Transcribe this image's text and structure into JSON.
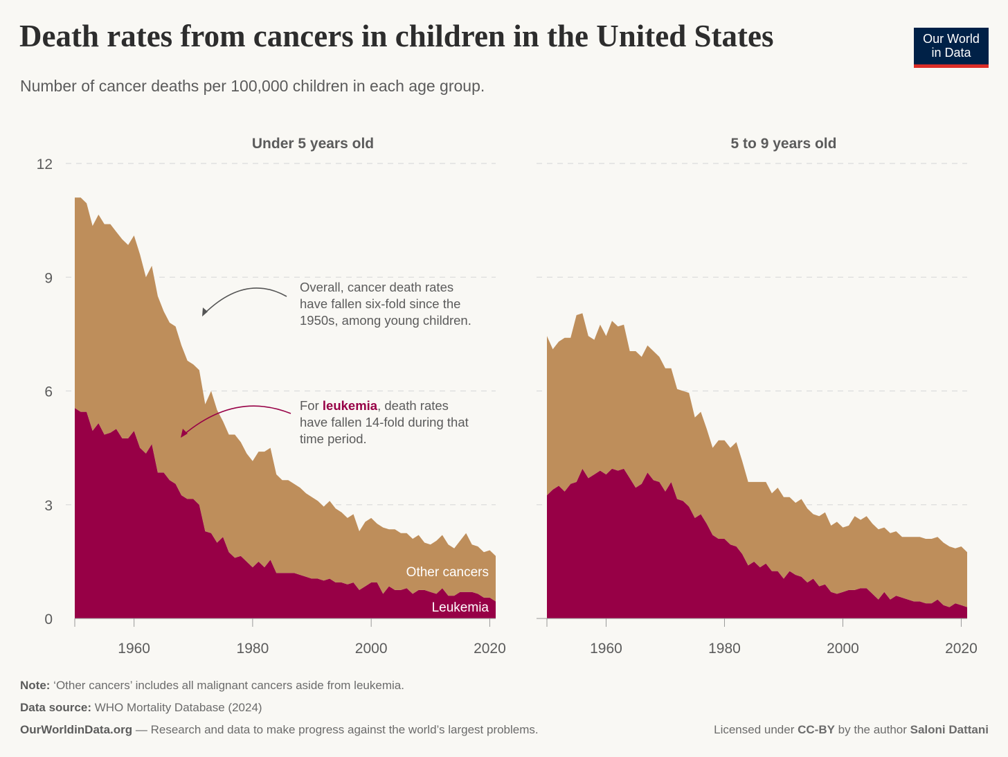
{
  "header": {
    "title": "Death rates from cancers in children in the United States",
    "subtitle": "Number of cancer deaths per 100,000 children in each age group.",
    "logo_line1": "Our World",
    "logo_line2": "in Data"
  },
  "colors": {
    "other_cancers": "#be8e5b",
    "leukemia": "#970046",
    "logo_bg": "#002147",
    "logo_accent": "#dc2d27"
  },
  "annotations": {
    "overall": [
      "Overall, cancer death rates",
      "have fallen six-fold since the",
      "1950s, among young children."
    ],
    "leukemia_prefix": "For ",
    "leukemia_word": "leukemia",
    "leukemia_rest": ", death rates",
    "leukemia_lines": [
      "have fallen 14-fold during that",
      "time period."
    ]
  },
  "footer": {
    "note_label": "Note:",
    "note": " ‘Other cancers’ includes all malignant cancers aside from leukemia.",
    "source_label": "Data source:",
    "source": " WHO Mortality Database (2024)",
    "site": "OurWorldinData.org",
    "tagline": " — Research and data to make progress against the world’s largest problems.",
    "license_prefix": "Licensed under ",
    "license": "CC-BY",
    "license_mid": " by the author ",
    "author": "Saloni Dattani"
  },
  "chart_data": [
    {
      "type": "area",
      "stacked": true,
      "title": "Under 5 years old",
      "x_start": 1950,
      "x_end": 2021,
      "xticks": [
        1960,
        1980,
        2000,
        2020
      ],
      "yticks": [
        0,
        3,
        6,
        9,
        12
      ],
      "ylim": [
        0,
        12
      ],
      "grid": "horizontal dashed",
      "series": [
        {
          "name": "Leukemia",
          "values": [
            5.55,
            5.45,
            5.45,
            4.95,
            5.15,
            4.85,
            4.9,
            5.0,
            4.75,
            4.75,
            4.95,
            4.5,
            4.35,
            4.6,
            3.85,
            3.85,
            3.65,
            3.55,
            3.25,
            3.15,
            3.15,
            3.0,
            2.3,
            2.25,
            2.0,
            2.15,
            1.75,
            1.6,
            1.65,
            1.5,
            1.35,
            1.5,
            1.35,
            1.55,
            1.2,
            1.2,
            1.2,
            1.2,
            1.15,
            1.1,
            1.05,
            1.05,
            1.0,
            1.05,
            0.95,
            0.95,
            0.9,
            0.95,
            0.75,
            0.85,
            0.95,
            0.95,
            0.65,
            0.85,
            0.75,
            0.75,
            0.8,
            0.65,
            0.75,
            0.75,
            0.7,
            0.65,
            0.8,
            0.6,
            0.6,
            0.7,
            0.7,
            0.7,
            0.65,
            0.55,
            0.55,
            0.45
          ]
        },
        {
          "name": "Other cancers",
          "values": [
            5.55,
            5.65,
            5.5,
            5.4,
            5.5,
            5.55,
            5.5,
            5.2,
            5.25,
            5.1,
            5.15,
            5.1,
            4.65,
            4.7,
            4.65,
            4.25,
            4.15,
            4.15,
            3.95,
            3.65,
            3.55,
            3.55,
            3.35,
            3.75,
            3.5,
            3.05,
            3.1,
            3.25,
            3.0,
            2.85,
            2.8,
            2.9,
            3.05,
            2.95,
            2.6,
            2.45,
            2.45,
            2.35,
            2.3,
            2.2,
            2.15,
            2.05,
            1.95,
            2.05,
            1.95,
            1.85,
            1.75,
            1.8,
            1.55,
            1.7,
            1.7,
            1.55,
            1.75,
            1.5,
            1.6,
            1.5,
            1.45,
            1.45,
            1.45,
            1.25,
            1.25,
            1.4,
            1.4,
            1.35,
            1.25,
            1.35,
            1.55,
            1.25,
            1.25,
            1.2,
            1.25,
            1.2
          ]
        }
      ]
    },
    {
      "type": "area",
      "stacked": true,
      "title": "5 to 9 years old",
      "x_start": 1950,
      "x_end": 2021,
      "xticks": [
        1960,
        1980,
        2000,
        2020
      ],
      "ylim": [
        0,
        12
      ],
      "grid": "horizontal dashed",
      "series": [
        {
          "name": "Leukemia",
          "values": [
            3.25,
            3.4,
            3.5,
            3.35,
            3.55,
            3.6,
            3.95,
            3.7,
            3.8,
            3.9,
            3.8,
            3.95,
            3.9,
            3.95,
            3.7,
            3.45,
            3.55,
            3.85,
            3.65,
            3.6,
            3.35,
            3.6,
            3.15,
            3.1,
            2.95,
            2.65,
            2.75,
            2.5,
            2.2,
            2.1,
            2.1,
            1.95,
            1.9,
            1.7,
            1.4,
            1.5,
            1.35,
            1.45,
            1.25,
            1.25,
            1.05,
            1.25,
            1.15,
            1.1,
            0.95,
            1.05,
            0.85,
            0.9,
            0.7,
            0.65,
            0.7,
            0.75,
            0.75,
            0.8,
            0.8,
            0.65,
            0.5,
            0.7,
            0.5,
            0.6,
            0.55,
            0.5,
            0.45,
            0.45,
            0.4,
            0.4,
            0.5,
            0.35,
            0.3,
            0.4,
            0.35,
            0.3
          ]
        },
        {
          "name": "Other cancers",
          "values": [
            4.2,
            3.7,
            3.8,
            4.05,
            3.85,
            4.4,
            4.1,
            3.75,
            3.55,
            3.85,
            3.65,
            3.9,
            3.8,
            3.8,
            3.35,
            3.6,
            3.35,
            3.35,
            3.4,
            3.3,
            3.25,
            3.0,
            2.9,
            2.9,
            3.0,
            2.65,
            2.7,
            2.5,
            2.3,
            2.6,
            2.6,
            2.55,
            2.75,
            2.45,
            2.2,
            2.1,
            2.25,
            2.15,
            2.05,
            2.2,
            2.15,
            1.95,
            1.9,
            2.05,
            1.95,
            1.7,
            1.85,
            1.9,
            1.75,
            1.9,
            1.7,
            1.7,
            1.95,
            1.8,
            1.9,
            1.85,
            1.85,
            1.7,
            1.75,
            1.7,
            1.6,
            1.65,
            1.7,
            1.7,
            1.7,
            1.7,
            1.65,
            1.65,
            1.6,
            1.45,
            1.55,
            1.45
          ]
        }
      ]
    }
  ]
}
